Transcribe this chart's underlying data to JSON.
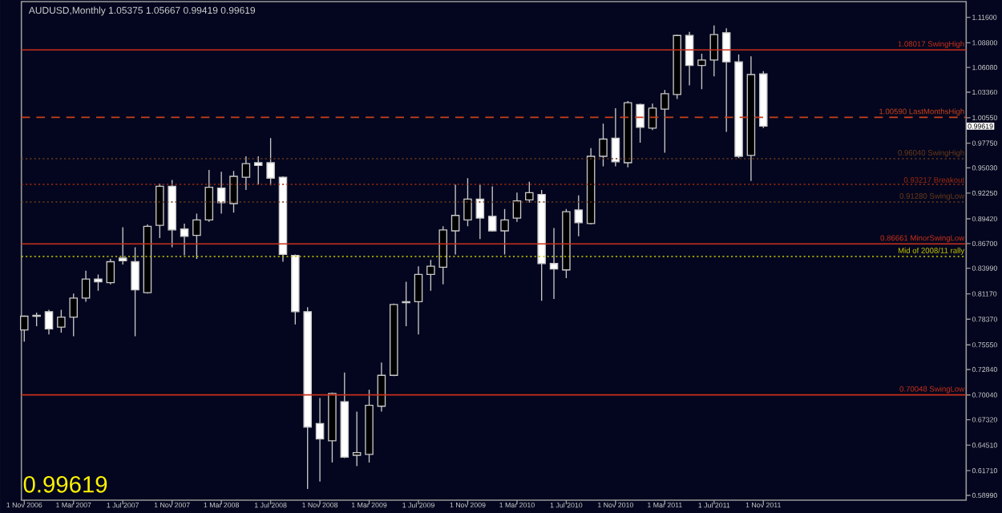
{
  "chart_data": {
    "type": "candlestick",
    "title": "AUDUSD,Monthly  1.05375 1.05667 0.99419 0.99619",
    "x": [
      "2006-11",
      "2006-12",
      "2007-01",
      "2007-02",
      "2007-03",
      "2007-04",
      "2007-05",
      "2007-06",
      "2007-07",
      "2007-08",
      "2007-09",
      "2007-10",
      "2007-11",
      "2007-12",
      "2008-01",
      "2008-02",
      "2008-03",
      "2008-04",
      "2008-05",
      "2008-06",
      "2008-07",
      "2008-08",
      "2008-09",
      "2008-10",
      "2008-11",
      "2008-12",
      "2009-01",
      "2009-02",
      "2009-03",
      "2009-04",
      "2009-05",
      "2009-06",
      "2009-07",
      "2009-08",
      "2009-09",
      "2009-10",
      "2009-11",
      "2009-12",
      "2010-01",
      "2010-02",
      "2010-03",
      "2010-04",
      "2010-05",
      "2010-06",
      "2010-07",
      "2010-08",
      "2010-09",
      "2010-10",
      "2010-11",
      "2010-12",
      "2011-01",
      "2011-02",
      "2011-03",
      "2011-04",
      "2011-05",
      "2011-06",
      "2011-07",
      "2011-08",
      "2011-09",
      "2011-10",
      "2011-11"
    ],
    "ohlc": [
      [
        0.772,
        0.788,
        0.759,
        0.787
      ],
      [
        0.787,
        0.791,
        0.776,
        0.788
      ],
      [
        0.792,
        0.794,
        0.767,
        0.773
      ],
      [
        0.775,
        0.794,
        0.769,
        0.786
      ],
      [
        0.786,
        0.812,
        0.765,
        0.807
      ],
      [
        0.807,
        0.837,
        0.803,
        0.828
      ],
      [
        0.828,
        0.833,
        0.815,
        0.825
      ],
      [
        0.824,
        0.85,
        0.822,
        0.847
      ],
      [
        0.851,
        0.885,
        0.844,
        0.848
      ],
      [
        0.847,
        0.863,
        0.765,
        0.816
      ],
      [
        0.813,
        0.888,
        0.812,
        0.886
      ],
      [
        0.887,
        0.933,
        0.873,
        0.93
      ],
      [
        0.93,
        0.937,
        0.863,
        0.882
      ],
      [
        0.883,
        0.889,
        0.854,
        0.875
      ],
      [
        0.876,
        0.9,
        0.85,
        0.893
      ],
      [
        0.893,
        0.948,
        0.891,
        0.929
      ],
      [
        0.928,
        0.946,
        0.9,
        0.912
      ],
      [
        0.911,
        0.947,
        0.901,
        0.941
      ],
      [
        0.94,
        0.963,
        0.926,
        0.955
      ],
      [
        0.956,
        0.963,
        0.932,
        0.953
      ],
      [
        0.956,
        0.983,
        0.931,
        0.939
      ],
      [
        0.94,
        0.941,
        0.847,
        0.855
      ],
      [
        0.854,
        0.855,
        0.778,
        0.792
      ],
      [
        0.792,
        0.797,
        0.597,
        0.665
      ],
      [
        0.669,
        0.697,
        0.605,
        0.652
      ],
      [
        0.65,
        0.703,
        0.626,
        0.702
      ],
      [
        0.693,
        0.725,
        0.631,
        0.632
      ],
      [
        0.634,
        0.682,
        0.622,
        0.637
      ],
      [
        0.635,
        0.706,
        0.626,
        0.689
      ],
      [
        0.688,
        0.736,
        0.682,
        0.722
      ],
      [
        0.722,
        0.801,
        0.721,
        0.8
      ],
      [
        0.802,
        0.825,
        0.776,
        0.803
      ],
      [
        0.803,
        0.842,
        0.767,
        0.833
      ],
      [
        0.833,
        0.849,
        0.815,
        0.842
      ],
      [
        0.841,
        0.886,
        0.822,
        0.882
      ],
      [
        0.881,
        0.932,
        0.855,
        0.898
      ],
      [
        0.893,
        0.939,
        0.886,
        0.916
      ],
      [
        0.916,
        0.932,
        0.872,
        0.895
      ],
      [
        0.897,
        0.93,
        0.88,
        0.881
      ],
      [
        0.881,
        0.905,
        0.855,
        0.893
      ],
      [
        0.895,
        0.923,
        0.891,
        0.914
      ],
      [
        0.915,
        0.935,
        0.912,
        0.923
      ],
      [
        0.921,
        0.926,
        0.804,
        0.845
      ],
      [
        0.845,
        0.884,
        0.806,
        0.839
      ],
      [
        0.838,
        0.905,
        0.829,
        0.902
      ],
      [
        0.904,
        0.92,
        0.875,
        0.89
      ],
      [
        0.889,
        0.972,
        0.888,
        0.963
      ],
      [
        0.963,
        0.999,
        0.952,
        0.982
      ],
      [
        0.983,
        1.016,
        0.952,
        0.957
      ],
      [
        0.956,
        1.024,
        0.951,
        1.022
      ],
      [
        1.02,
        1.021,
        0.978,
        0.995
      ],
      [
        0.994,
        1.021,
        0.992,
        1.016
      ],
      [
        1.015,
        1.036,
        0.967,
        1.032
      ],
      [
        1.031,
        1.097,
        1.026,
        1.096
      ],
      [
        1.096,
        1.1,
        1.041,
        1.063
      ],
      [
        1.063,
        1.076,
        1.037,
        1.069
      ],
      [
        1.069,
        1.107,
        1.051,
        1.097
      ],
      [
        1.099,
        1.104,
        0.99,
        1.067
      ],
      [
        1.067,
        1.075,
        0.961,
        0.963
      ],
      [
        0.964,
        1.073,
        0.936,
        1.053
      ],
      [
        1.05375,
        1.05667,
        0.99419,
        0.99619
      ]
    ],
    "xlim": [
      "2006-10-24",
      "2013-03-15"
    ],
    "xticks": [
      {
        "value": "2006-11-01",
        "label": "1 Nov 2006"
      },
      {
        "value": "2007-03-01",
        "label": "1 Mar 2007"
      },
      {
        "value": "2007-07-01",
        "label": "1 Jul 2007"
      },
      {
        "value": "2007-11-01",
        "label": "1 Nov 2007"
      },
      {
        "value": "2008-03-01",
        "label": "1 Mar 2008"
      },
      {
        "value": "2008-07-01",
        "label": "1 Jul 2008"
      },
      {
        "value": "2008-11-01",
        "label": "1 Nov 2008"
      },
      {
        "value": "2009-03-01",
        "label": "1 Mar 2009"
      },
      {
        "value": "2009-07-01",
        "label": "1 Jul 2009"
      },
      {
        "value": "2009-11-01",
        "label": "1 Nov 2009"
      },
      {
        "value": "2010-03-01",
        "label": "1 Mar 2010"
      },
      {
        "value": "2010-07-01",
        "label": "1 Jul 2010"
      },
      {
        "value": "2010-11-01",
        "label": "1 Nov 2010"
      },
      {
        "value": "2011-03-01",
        "label": "1 Mar 2011"
      },
      {
        "value": "2011-07-01",
        "label": "1 Jul 2011"
      },
      {
        "value": "2011-11-01",
        "label": "1 Nov 2011"
      }
    ],
    "ylim": [
      0.5846,
      1.1333
    ],
    "yticks": [
      {
        "value": 0.5899,
        "label": "0.58990"
      },
      {
        "value": 0.6171,
        "label": "0.61710"
      },
      {
        "value": 0.6451,
        "label": "0.64510"
      },
      {
        "value": 0.6732,
        "label": "0.67320"
      },
      {
        "value": 0.7004,
        "label": "0.70040"
      },
      {
        "value": 0.7284,
        "label": "0.72840"
      },
      {
        "value": 0.7555,
        "label": "0.75550"
      },
      {
        "value": 0.7837,
        "label": "0.78370"
      },
      {
        "value": 0.8117,
        "label": "0.81170"
      },
      {
        "value": 0.8399,
        "label": "0.83990"
      },
      {
        "value": 0.867,
        "label": "0.86700"
      },
      {
        "value": 0.8942,
        "label": "0.89420"
      },
      {
        "value": 0.9225,
        "label": "0.92250"
      },
      {
        "value": 0.9503,
        "label": "0.95030"
      },
      {
        "value": 0.9775,
        "label": "0.97750"
      },
      {
        "value": 1.0055,
        "label": "1.00550"
      },
      {
        "value": 1.0336,
        "label": "1.03360"
      },
      {
        "value": 1.0608,
        "label": "1.06080"
      },
      {
        "value": 1.088,
        "label": "1.08800"
      },
      {
        "value": 1.116,
        "label": "1.11600"
      }
    ],
    "ref_lines": [
      {
        "axis": "y",
        "value": 1.08017,
        "label": "1.08017 SwingHigh",
        "color": "#c8301a",
        "line_style": "solid"
      },
      {
        "axis": "y",
        "value": 1.0059,
        "label": "1.00590 LastMonthsHigh",
        "color": "#c8401a",
        "line_style": "dashed"
      },
      {
        "axis": "y",
        "value": 0.9604,
        "label": "0.96040 SwingHigh",
        "color": "#6b3a1a",
        "line_style": "dotted"
      },
      {
        "axis": "y",
        "value": 0.93217,
        "label": "0.93217 Breakout",
        "color": "#a02a10",
        "line_style": "dotted"
      },
      {
        "axis": "y",
        "value": 0.9128,
        "label": "0.91280 SwingLow",
        "color": "#6b3a1a",
        "line_style": "dotted"
      },
      {
        "axis": "y",
        "value": 0.86661,
        "label": "0.86661 MinorSwingLow",
        "color": "#c8301a",
        "line_style": "solid"
      },
      {
        "axis": "y",
        "value": 0.8528,
        "label": "Mid of 2008/11 rally",
        "color": "#c8c800",
        "line_style": "dotted"
      },
      {
        "axis": "y",
        "value": 0.70048,
        "label": "0.70048 SwingLow",
        "color": "#c8301a",
        "line_style": "solid"
      }
    ],
    "annotations": [
      "0.99619",
      "0.99619"
    ]
  }
}
